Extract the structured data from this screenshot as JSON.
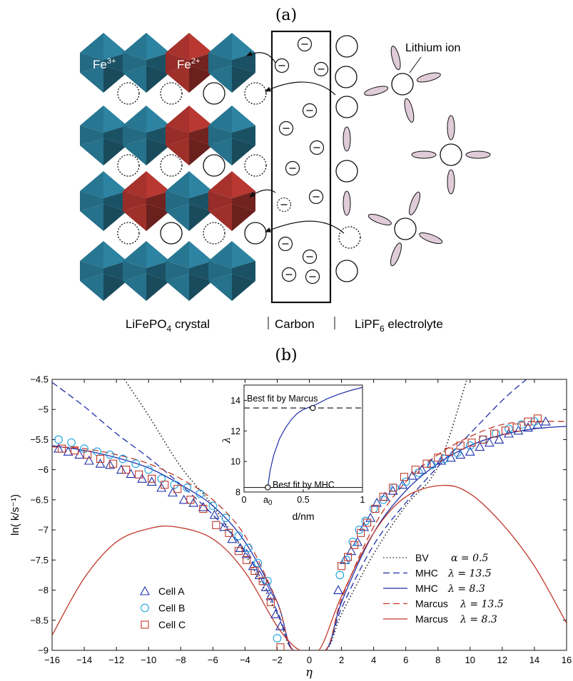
{
  "panel_a": {
    "label": "(a)",
    "fe3": "Fe",
    "fe3_sup": "3+",
    "fe2": "Fe",
    "fe2_sup": "2+",
    "lithium_ion": "Lithium ion",
    "crystal_label_pre": "LiFePO",
    "crystal_label_sub": "4",
    "crystal_label_post": " crystal",
    "carbon_label": "Carbon",
    "electrolyte_pre": "LiPF",
    "electrolyte_sub": "6",
    "electrolyte_post": " electrolyte",
    "minus": "−",
    "colors": {
      "fe3_blue": "#2a7d9a",
      "fe2_red": "#b0352f",
      "anion_pink": "#e0ccd8"
    }
  },
  "panel_b": {
    "label": "(b)"
  },
  "chart_data": [
    {
      "type": "line",
      "xlabel": "η",
      "ylabel": "ln( k/s⁻¹)",
      "xlim": [
        -16,
        16
      ],
      "ylim": [
        -9,
        -4.5
      ],
      "xticks": [
        -16,
        -14,
        -12,
        -10,
        -8,
        -6,
        -4,
        -2,
        0,
        2,
        4,
        6,
        8,
        10,
        12,
        14,
        16
      ],
      "yticks": [
        -9,
        -8.5,
        -8,
        -7.5,
        -7,
        -6.5,
        -6,
        -5.5,
        -5,
        -4.5
      ],
      "legend_curves_position": "bottom-right",
      "legend_cells_position": "bottom-left",
      "series": [
        {
          "name": "BV",
          "param": "α = 0.5",
          "style": "dotted",
          "color": "#222222",
          "x": [
            -11.5,
            -10,
            -8,
            -6,
            -4,
            -2,
            -1,
            1,
            2,
            4,
            6,
            8,
            9.8
          ],
          "y": [
            -4.5,
            -5.1,
            -5.95,
            -6.6,
            -7.4,
            -8.4,
            -9.0,
            -9.0,
            -8.4,
            -7.4,
            -6.6,
            -5.95,
            -4.5
          ]
        },
        {
          "name": "MHC",
          "param": "λ = 13.5",
          "style": "dashed",
          "color": "#1f2fa8",
          "x": [
            -16,
            -14,
            -12,
            -10,
            -8,
            -6,
            -4,
            -2,
            -1,
            1,
            2,
            4,
            6,
            8,
            10,
            12,
            13.5
          ],
          "y": [
            -4.55,
            -4.95,
            -5.4,
            -5.8,
            -6.25,
            -6.75,
            -7.35,
            -8.35,
            -9.0,
            -9.0,
            -8.3,
            -7.25,
            -6.55,
            -5.95,
            -5.4,
            -4.85,
            -4.5
          ]
        },
        {
          "name": "MHC",
          "param": "λ = 8.3",
          "style": "solid",
          "color": "#1f2fa8",
          "x": [
            -16,
            -14,
            -12,
            -10,
            -8,
            -6,
            -4,
            -2,
            -1,
            1,
            2,
            4,
            6,
            8,
            10,
            12,
            14,
            16
          ],
          "y": [
            -5.6,
            -5.68,
            -5.8,
            -5.97,
            -6.25,
            -6.6,
            -7.2,
            -8.2,
            -9.0,
            -9.0,
            -8.2,
            -7.05,
            -6.35,
            -5.9,
            -5.6,
            -5.42,
            -5.32,
            -5.28
          ]
        },
        {
          "name": "Marcus",
          "param": "λ = 13.5",
          "style": "dashed",
          "color": "#c0392b",
          "x": [
            -16,
            -14,
            -12,
            -10,
            -8,
            -6,
            -4,
            -2,
            -1,
            1,
            2,
            4,
            6,
            8,
            10,
            12,
            14,
            16
          ],
          "y": [
            -5.62,
            -5.65,
            -5.75,
            -5.9,
            -6.15,
            -6.5,
            -7.1,
            -8.2,
            -9.0,
            -9.0,
            -8.15,
            -6.95,
            -6.2,
            -5.75,
            -5.45,
            -5.25,
            -5.2,
            -5.2
          ]
        },
        {
          "name": "Marcus",
          "param": "λ = 8.3",
          "style": "solid",
          "color": "#c0392b",
          "x": [
            -16,
            -14,
            -12,
            -10,
            -8.3,
            -6,
            -4,
            -2,
            -0.6,
            0.6,
            2,
            4,
            6,
            8.3,
            10,
            12,
            14,
            16
          ],
          "y": [
            -8.75,
            -7.8,
            -7.2,
            -6.98,
            -6.95,
            -7.15,
            -7.7,
            -8.6,
            -9.0,
            -9.0,
            -8.1,
            -7.05,
            -6.45,
            -6.26,
            -6.4,
            -6.9,
            -7.6,
            -8.55
          ]
        }
      ],
      "markers": [
        {
          "name": "Cell A",
          "marker": "triangle",
          "color": "#1f2fa8",
          "x": [
            -15.6,
            -15,
            -14.3,
            -13.7,
            -13,
            -12.4,
            -11.7,
            -11.1,
            -10.4,
            -9.8,
            -9.2,
            -8.5,
            -7.8,
            -7.2,
            -6.6,
            -5.9,
            -5.3,
            -4.8,
            -4.3,
            -3.9,
            -3.5,
            -3.1,
            -2.7,
            -2.4,
            -2.1,
            -1.8,
            1.8,
            2.2,
            2.6,
            3.0,
            3.4,
            3.8,
            4.2,
            4.7,
            5.2,
            5.8,
            6.4,
            7.0,
            7.6,
            8.2,
            8.8,
            9.4,
            10.0,
            10.6,
            11.2,
            11.8,
            12.4,
            13.0,
            13.6,
            14.2,
            14.7
          ],
          "y": [
            -5.65,
            -5.7,
            -5.75,
            -5.85,
            -5.9,
            -5.92,
            -6.0,
            -6.07,
            -6.15,
            -6.2,
            -6.3,
            -6.38,
            -6.5,
            -6.55,
            -6.62,
            -6.75,
            -6.95,
            -7.15,
            -7.3,
            -7.4,
            -7.6,
            -7.75,
            -7.95,
            -8.1,
            -8.4,
            -8.6,
            -8.0,
            -7.5,
            -7.35,
            -7.2,
            -6.95,
            -6.8,
            -6.55,
            -6.45,
            -6.35,
            -6.25,
            -6.1,
            -6.0,
            -5.9,
            -5.85,
            -5.8,
            -5.75,
            -5.7,
            -5.62,
            -5.55,
            -5.5,
            -5.4,
            -5.35,
            -5.3,
            -5.25,
            -5.2
          ]
        },
        {
          "name": "Cell B",
          "marker": "circle",
          "color": "#1aa0e0",
          "x": [
            -15.6,
            -14.8,
            -14,
            -13.2,
            -12.4,
            -11.6,
            -10.8,
            -10,
            -9.2,
            -8.4,
            -7.6,
            -6.8,
            -6.0,
            -5.2,
            -4.4,
            -3.8,
            -3.2,
            -2.6,
            -2.0,
            1.9,
            2.3,
            2.7,
            3.1,
            3.5,
            4.0,
            4.6,
            5.3,
            6.0,
            6.8,
            7.6,
            8.4,
            9.2,
            10,
            10.8,
            11.6,
            12.4,
            13.2,
            14.0
          ],
          "y": [
            -5.5,
            -5.55,
            -5.65,
            -5.7,
            -5.75,
            -5.82,
            -5.9,
            -6.0,
            -6.15,
            -6.25,
            -6.3,
            -6.4,
            -6.6,
            -6.8,
            -7.1,
            -7.3,
            -7.55,
            -7.85,
            -8.8,
            -7.75,
            -7.5,
            -7.2,
            -7.0,
            -6.85,
            -6.65,
            -6.5,
            -6.3,
            -6.2,
            -6.05,
            -5.92,
            -5.82,
            -5.72,
            -5.6,
            -5.5,
            -5.4,
            -5.32,
            -5.25,
            -5.2
          ]
        },
        {
          "name": "Cell C",
          "marker": "square",
          "color": "#c0392b",
          "x": [
            -15.4,
            -14.6,
            -13.8,
            -13,
            -12.2,
            -11.4,
            -10.6,
            -9.8,
            -9.0,
            -8.2,
            -7.4,
            -6.6,
            -5.8,
            -5.0,
            -4.4,
            -3.9,
            -3.4,
            -2.9,
            -2.4,
            -1.8,
            2.0,
            2.4,
            2.8,
            3.2,
            3.6,
            4.1,
            4.6,
            5.2,
            5.9,
            6.6,
            7.3,
            8.0,
            8.7,
            9.4,
            10.1,
            10.8,
            11.5,
            12.2,
            12.9,
            13.6,
            14.2
          ],
          "y": [
            -5.65,
            -5.68,
            -5.75,
            -5.82,
            -5.9,
            -6.0,
            -6.08,
            -6.15,
            -6.25,
            -6.32,
            -6.5,
            -6.65,
            -6.92,
            -7.05,
            -7.35,
            -7.5,
            -7.68,
            -7.85,
            -8.2,
            -8.95,
            -7.6,
            -7.45,
            -7.25,
            -7.05,
            -6.88,
            -6.65,
            -6.45,
            -6.3,
            -6.12,
            -6.0,
            -5.9,
            -5.8,
            -5.7,
            -5.6,
            -5.55,
            -5.5,
            -5.4,
            -5.35,
            -5.3,
            -5.2,
            -5.15
          ]
        }
      ]
    },
    {
      "type": "line",
      "position": "inset",
      "xlabel": "d/nm",
      "ylabel": "λ",
      "xlim": [
        0,
        1
      ],
      "ylim": [
        8,
        15
      ],
      "xticks": [
        0,
        0.5,
        1
      ],
      "xtick_labels": [
        "0",
        "0.5",
        "1"
      ],
      "extra_tick_label": "a",
      "extra_tick_sub": "0",
      "yticks": [
        8,
        10,
        12,
        14
      ],
      "annotations": [
        "Best fit by Marcus",
        "Best fit by MHC"
      ],
      "series": [
        {
          "name": "",
          "style": "solid",
          "color": "#1f2fa8",
          "x": [
            0.2,
            0.22,
            0.25,
            0.3,
            0.35,
            0.4,
            0.45,
            0.5,
            0.55,
            0.6,
            0.7,
            0.8,
            0.9,
            1.0
          ],
          "y": [
            8.3,
            9.4,
            10.4,
            11.5,
            12.2,
            12.75,
            13.15,
            13.4,
            13.55,
            13.7,
            14.1,
            14.4,
            14.65,
            14.85
          ]
        },
        {
          "name": "",
          "style": "dashed",
          "color": "#222222",
          "x": [
            0,
            1
          ],
          "y": [
            13.5,
            13.5
          ]
        },
        {
          "name": "",
          "style": "solid",
          "color": "#222222",
          "x": [
            0,
            1
          ],
          "y": [
            8.3,
            8.3
          ]
        }
      ],
      "points": [
        {
          "x": 0.58,
          "y": 13.5
        },
        {
          "x": 0.2,
          "y": 8.3
        }
      ]
    }
  ]
}
